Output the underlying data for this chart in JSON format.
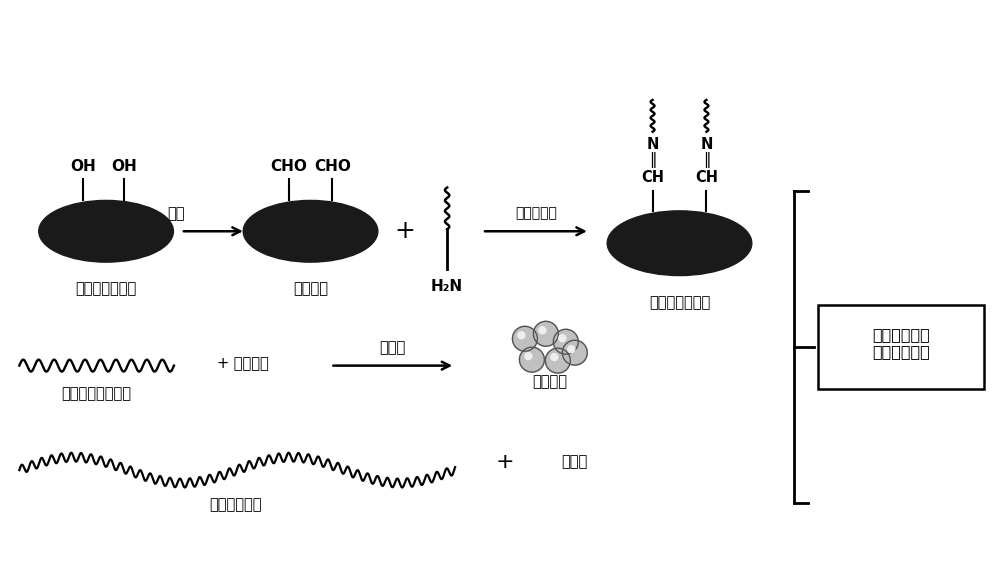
{
  "bg_color": "#ffffff",
  "fig_width": 10.0,
  "fig_height": 5.76,
  "labels": {
    "natural_polysaccharide": "天然高分子多糖",
    "oxidized_polysaccharide": "氧化多糖",
    "oxidation": "氧化",
    "schiff_base": "希夫碱反应",
    "oxidized_graft": "氧化多糖接枝物",
    "amphiphilic_polymer": "两亲性嵌段聚合物",
    "bio_pesticide": "+ 生物农药",
    "self_assembly": "自组装",
    "drug_microsphere": "载药微球",
    "water_absorbing": "吸水性聚合物",
    "plasticizer": "增塑剂",
    "product": "生物基缓控释\n农药液态地膜"
  },
  "ellipse_colors": [
    "#1a1a1a",
    "#606060",
    "#a0a0a0",
    "#d0d0d0",
    "#f0f0f0"
  ],
  "ellipse_scales": [
    1.0,
    0.8,
    0.6,
    0.42,
    0.25
  ]
}
